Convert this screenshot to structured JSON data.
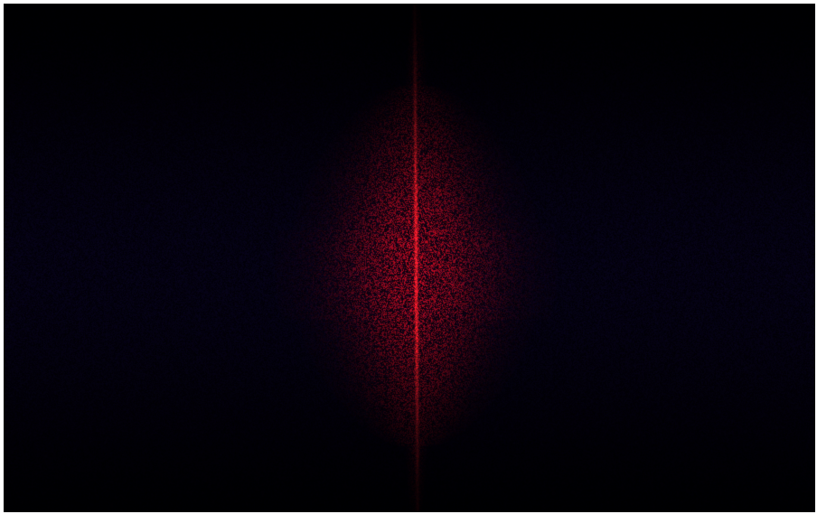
{
  "image": {
    "background_color": "#000000",
    "frame_color": "#ffffff",
    "glow_color": "#e0141c",
    "core_color": "#ff2a2a",
    "haze_color": "#1a1078"
  }
}
